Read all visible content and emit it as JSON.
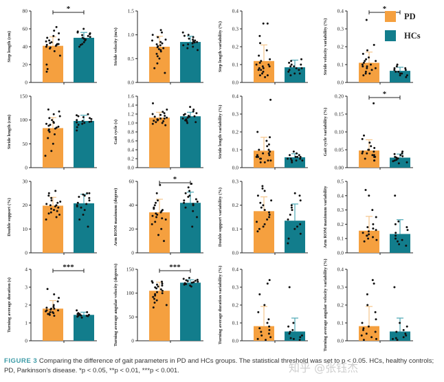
{
  "colors": {
    "PD": "#f5a03f",
    "HCs": "#127d8c",
    "dot": "#111111",
    "axis": "#222222"
  },
  "legend": [
    {
      "name": "PD",
      "color": "#f5a03f"
    },
    {
      "name": "HCs",
      "color": "#127d8c"
    }
  ],
  "caption": {
    "label": "FIGURE 3",
    "text": "Comparing the difference of gait parameters in PD and HCs groups. The statistical threshold was set to p < 0.05. HCs, healthy controls; PD, Parkinson's disease. *p < 0.05, **p < 0.01, ***p < 0.001."
  },
  "watermark": "知乎 @张钰杰",
  "chart_data": [
    {
      "type": "bar",
      "ylabel": "Step length (cm)",
      "ylim": [
        0,
        80
      ],
      "yticks": [
        "0",
        "20",
        "40",
        "60",
        "80"
      ],
      "categories": [
        "PD",
        "HCs"
      ],
      "values": [
        41,
        50
      ],
      "error": [
        10,
        6
      ],
      "significance": "*",
      "points": [
        [
          62,
          58,
          55,
          52,
          50,
          48,
          47,
          46,
          45,
          44,
          43,
          43,
          42,
          42,
          41,
          40,
          39,
          38,
          35,
          30,
          20,
          15,
          12
        ],
        [
          60,
          57,
          56,
          55,
          54,
          53,
          52,
          51,
          50,
          49,
          48,
          47,
          45,
          43,
          42,
          40
        ]
      ]
    },
    {
      "type": "bar",
      "ylabel": "Stride velocity (m/s)",
      "ylim": [
        0,
        1.5
      ],
      "yticks": [
        "0.0",
        "0.5",
        "1.0",
        "1.5"
      ],
      "categories": [
        "PD",
        "HCs"
      ],
      "values": [
        0.75,
        0.85
      ],
      "error": [
        0.22,
        0.12
      ],
      "significance": "",
      "points": [
        [
          1.1,
          1.05,
          1.0,
          0.95,
          0.9,
          0.88,
          0.85,
          0.82,
          0.8,
          0.78,
          0.76,
          0.74,
          0.72,
          0.7,
          0.68,
          0.65,
          0.6,
          0.55,
          0.5,
          0.4,
          0.3,
          0.2
        ],
        [
          1.05,
          1.0,
          0.98,
          0.95,
          0.92,
          0.9,
          0.88,
          0.86,
          0.85,
          0.84,
          0.82,
          0.8,
          0.78,
          0.75,
          0.72,
          0.68
        ]
      ]
    },
    {
      "type": "bar",
      "ylabel": "Step length variability (%)",
      "ylim": [
        0,
        0.4
      ],
      "yticks": [
        "0.0",
        "0.1",
        "0.2",
        "0.3",
        "0.4"
      ],
      "categories": [
        "PD",
        "HCs"
      ],
      "values": [
        0.12,
        0.085
      ],
      "error": [
        0.09,
        0.04
      ],
      "significance": "",
      "points": [
        [
          0.33,
          0.33,
          0.26,
          0.22,
          0.18,
          0.15,
          0.13,
          0.12,
          0.11,
          0.1,
          0.1,
          0.09,
          0.09,
          0.08,
          0.08,
          0.07,
          0.07,
          0.06,
          0.05,
          0.04,
          0.04,
          0.03
        ],
        [
          0.13,
          0.12,
          0.11,
          0.1,
          0.1,
          0.09,
          0.09,
          0.08,
          0.08,
          0.07,
          0.07,
          0.06,
          0.05,
          0.05,
          0.04
        ]
      ]
    },
    {
      "type": "bar",
      "ylabel": "Stride velocity variability (%)",
      "ylim": [
        0,
        0.4
      ],
      "yticks": [
        "0.0",
        "0.1",
        "0.2",
        "0.3",
        "0.4"
      ],
      "categories": [
        "PD",
        "HCs"
      ],
      "values": [
        0.11,
        0.065
      ],
      "error": [
        0.06,
        0.02
      ],
      "significance": "*",
      "points": [
        [
          0.35,
          0.21,
          0.18,
          0.16,
          0.14,
          0.13,
          0.12,
          0.12,
          0.11,
          0.1,
          0.1,
          0.09,
          0.09,
          0.08,
          0.08,
          0.07,
          0.06,
          0.05,
          0.05,
          0.04
        ],
        [
          0.1,
          0.09,
          0.08,
          0.08,
          0.07,
          0.07,
          0.06,
          0.06,
          0.05,
          0.05,
          0.04,
          0.04,
          0.03
        ]
      ]
    },
    {
      "type": "bar",
      "ylabel": "Stride length (cm)",
      "ylim": [
        0,
        150
      ],
      "yticks": [
        "0",
        "50",
        "100",
        "150"
      ],
      "categories": [
        "PD",
        "HCs"
      ],
      "values": [
        83,
        98
      ],
      "error": [
        22,
        12
      ],
      "significance": "",
      "points": [
        [
          122,
          118,
          112,
          108,
          104,
          100,
          96,
          94,
          92,
          90,
          88,
          86,
          84,
          82,
          80,
          78,
          75,
          70,
          62,
          50,
          35,
          25
        ],
        [
          112,
          110,
          108,
          106,
          104,
          102,
          100,
          98,
          97,
          96,
          95,
          94,
          92,
          90,
          85,
          78
        ]
      ]
    },
    {
      "type": "bar",
      "ylabel": "Gait cycle (s)",
      "ylim": [
        0,
        1.6
      ],
      "yticks": [
        "0.0",
        "0.2",
        "0.4",
        "0.6",
        "0.8",
        "1.0",
        "1.2",
        "1.4",
        "1.6"
      ],
      "categories": [
        "PD",
        "HCs"
      ],
      "values": [
        1.12,
        1.15
      ],
      "error": [
        0.12,
        0.09
      ],
      "significance": "",
      "points": [
        [
          1.44,
          1.3,
          1.25,
          1.22,
          1.2,
          1.18,
          1.16,
          1.14,
          1.12,
          1.1,
          1.1,
          1.08,
          1.07,
          1.06,
          1.05,
          1.04,
          1.02,
          1.0,
          0.98,
          0.95
        ],
        [
          1.36,
          1.3,
          1.26,
          1.22,
          1.2,
          1.18,
          1.16,
          1.15,
          1.14,
          1.12,
          1.1,
          1.08,
          1.06,
          1.04,
          1.02,
          1.0
        ]
      ]
    },
    {
      "type": "bar",
      "ylabel": "Stride length variability (%)",
      "ylim": [
        0,
        0.4
      ],
      "yticks": [
        "0.0",
        "0.1",
        "0.2",
        "0.3",
        "0.4"
      ],
      "categories": [
        "PD",
        "HCs"
      ],
      "values": [
        0.095,
        0.058
      ],
      "error": [
        0.075,
        0.02
      ],
      "significance": "",
      "points": [
        [
          0.38,
          0.2,
          0.17,
          0.15,
          0.13,
          0.12,
          0.1,
          0.1,
          0.09,
          0.08,
          0.08,
          0.07,
          0.07,
          0.06,
          0.06,
          0.05,
          0.05,
          0.04,
          0.04,
          0.03,
          0.03
        ],
        [
          0.09,
          0.08,
          0.07,
          0.07,
          0.06,
          0.06,
          0.06,
          0.05,
          0.05,
          0.05,
          0.04,
          0.04,
          0.04,
          0.03
        ]
      ]
    },
    {
      "type": "bar",
      "ylabel": "Gait cycle variability (%)",
      "ylim": [
        0,
        0.2
      ],
      "yticks": [
        "0.00",
        "0.05",
        "0.10",
        "0.15",
        "0.20"
      ],
      "categories": [
        "PD",
        "HCs"
      ],
      "values": [
        0.048,
        0.028
      ],
      "error": [
        0.03,
        0.01
      ],
      "significance": "*",
      "points": [
        [
          0.18,
          0.09,
          0.08,
          0.07,
          0.06,
          0.055,
          0.05,
          0.05,
          0.045,
          0.045,
          0.04,
          0.04,
          0.035,
          0.035,
          0.03,
          0.03,
          0.025,
          0.02,
          0.02
        ],
        [
          0.045,
          0.04,
          0.038,
          0.035,
          0.032,
          0.03,
          0.028,
          0.026,
          0.025,
          0.022,
          0.02,
          0.018,
          0.015,
          0.012
        ]
      ]
    },
    {
      "type": "bar",
      "ylabel": "Double support (%)",
      "ylim": [
        0,
        30
      ],
      "yticks": [
        "0",
        "10",
        "20",
        "30"
      ],
      "categories": [
        "PD",
        "HCs"
      ],
      "values": [
        19.8,
        20.8
      ],
      "error": [
        3.5,
        3.8
      ],
      "significance": "",
      "points": [
        [
          26,
          25,
          24,
          23,
          22,
          21.5,
          21,
          20.5,
          20,
          20,
          19.5,
          19,
          18.5,
          18,
          17.5,
          17,
          16.5,
          16,
          15,
          14
        ],
        [
          25,
          25,
          24.5,
          24,
          23.5,
          23,
          22,
          21,
          20.5,
          20,
          19.5,
          19,
          18,
          16,
          14,
          11
        ]
      ]
    },
    {
      "type": "bar",
      "ylabel": "Arm ROM maximum (degree)",
      "ylim": [
        0,
        60
      ],
      "yticks": [
        "0",
        "20",
        "40",
        "60"
      ],
      "categories": [
        "PD",
        "HCs"
      ],
      "values": [
        34,
        42
      ],
      "error": [
        11,
        9
      ],
      "significance": "*",
      "points": [
        [
          57,
          50,
          44,
          42,
          40,
          38,
          37,
          36,
          35,
          34,
          33,
          32,
          31,
          30,
          29,
          28,
          26,
          24,
          20,
          15,
          10
        ],
        [
          58,
          55,
          52,
          50,
          48,
          47,
          45,
          44,
          43,
          42,
          41,
          40,
          38,
          35,
          30,
          22
        ]
      ]
    },
    {
      "type": "bar",
      "ylabel": "Double support variability (%)",
      "ylim": [
        0,
        0.3
      ],
      "yticks": [
        "0.0",
        "0.1",
        "0.2",
        "0.3"
      ],
      "categories": [
        "PD",
        "HCs"
      ],
      "values": [
        0.175,
        0.135
      ],
      "error": [
        0.06,
        0.07
      ],
      "significance": "",
      "points": [
        [
          0.28,
          0.27,
          0.26,
          0.24,
          0.22,
          0.21,
          0.2,
          0.19,
          0.18,
          0.17,
          0.16,
          0.15,
          0.14,
          0.13,
          0.12,
          0.11,
          0.1,
          0.09
        ],
        [
          0.25,
          0.24,
          0.22,
          0.2,
          0.19,
          0.18,
          0.16,
          0.14,
          0.12,
          0.11,
          0.1,
          0.08,
          0.06,
          0.04
        ]
      ]
    },
    {
      "type": "bar",
      "ylabel": "Arm ROM maximum variability",
      "ylim": [
        0,
        0.5
      ],
      "yticks": [
        "0.0",
        "0.1",
        "0.2",
        "0.3",
        "0.4",
        "0.5"
      ],
      "categories": [
        "PD",
        "HCs"
      ],
      "values": [
        0.155,
        0.132
      ],
      "error": [
        0.1,
        0.1
      ],
      "significance": "",
      "points": [
        [
          0.44,
          0.4,
          0.3,
          0.25,
          0.2,
          0.18,
          0.17,
          0.16,
          0.15,
          0.14,
          0.13,
          0.12,
          0.12,
          0.11,
          0.1,
          0.09,
          0.08
        ],
        [
          0.4,
          0.22,
          0.2,
          0.18,
          0.16,
          0.14,
          0.12,
          0.1,
          0.09,
          0.08,
          0.06,
          0.05
        ]
      ]
    },
    {
      "type": "bar",
      "ylabel": "Turning average duration (s)",
      "ylim": [
        0,
        4
      ],
      "yticks": [
        "0",
        "1",
        "2",
        "3",
        "4"
      ],
      "categories": [
        "PD",
        "HCs"
      ],
      "values": [
        1.8,
        1.45
      ],
      "error": [
        0.45,
        0.15
      ],
      "significance": "***",
      "points": [
        [
          2.9,
          2.6,
          2.4,
          2.2,
          2.0,
          1.9,
          1.85,
          1.8,
          1.8,
          1.75,
          1.7,
          1.7,
          1.65,
          1.6,
          1.6,
          1.55,
          1.5,
          1.5,
          1.45,
          1.4
        ],
        [
          1.7,
          1.6,
          1.55,
          1.5,
          1.5,
          1.48,
          1.45,
          1.45,
          1.42,
          1.4,
          1.4,
          1.38,
          1.35,
          1.3
        ]
      ]
    },
    {
      "type": "bar",
      "ylabel": "Turning average angular velocity (degree/s)",
      "ylim": [
        0,
        150
      ],
      "yticks": [
        "0",
        "50",
        "100",
        "150"
      ],
      "categories": [
        "PD",
        "HCs"
      ],
      "values": [
        105,
        122
      ],
      "error": [
        18,
        6
      ],
      "significance": "***",
      "points": [
        [
          125,
          124,
          122,
          120,
          118,
          116,
          114,
          112,
          110,
          108,
          105,
          102,
          100,
          98,
          95,
          92,
          88,
          85,
          80,
          75,
          70
        ],
        [
          132,
          130,
          128,
          127,
          126,
          125,
          124,
          123,
          122,
          121,
          120,
          119,
          118,
          116,
          114
        ]
      ]
    },
    {
      "type": "bar",
      "ylabel": "Turning average duration variability (%)",
      "ylim": [
        0,
        0.4
      ],
      "yticks": [
        "0.0",
        "0.1",
        "0.2",
        "0.3",
        "0.4"
      ],
      "categories": [
        "PD",
        "HCs"
      ],
      "values": [
        0.082,
        0.052
      ],
      "error": [
        0.11,
        0.075
      ],
      "significance": "",
      "points": [
        [
          0.34,
          0.32,
          0.26,
          0.2,
          0.16,
          0.12,
          0.1,
          0.08,
          0.07,
          0.06,
          0.05,
          0.04,
          0.03,
          0.02,
          0.01,
          0.005
        ],
        [
          0.3,
          0.1,
          0.08,
          0.06,
          0.05,
          0.04,
          0.03,
          0.02,
          0.015,
          0.01,
          0.005
        ]
      ]
    },
    {
      "type": "bar",
      "ylabel": "Turning average angular velocity variability (%)",
      "ylim": [
        0,
        0.4
      ],
      "yticks": [
        "0.0",
        "0.1",
        "0.2",
        "0.3",
        "0.4"
      ],
      "categories": [
        "PD",
        "HCs"
      ],
      "values": [
        0.082,
        0.052
      ],
      "error": [
        0.11,
        0.075
      ],
      "significance": "",
      "points": [
        [
          0.34,
          0.32,
          0.26,
          0.2,
          0.16,
          0.12,
          0.1,
          0.08,
          0.07,
          0.06,
          0.05,
          0.04,
          0.03,
          0.02,
          0.01,
          0.005
        ],
        [
          0.3,
          0.1,
          0.08,
          0.06,
          0.05,
          0.04,
          0.03,
          0.02,
          0.015,
          0.01,
          0.005
        ]
      ]
    }
  ]
}
